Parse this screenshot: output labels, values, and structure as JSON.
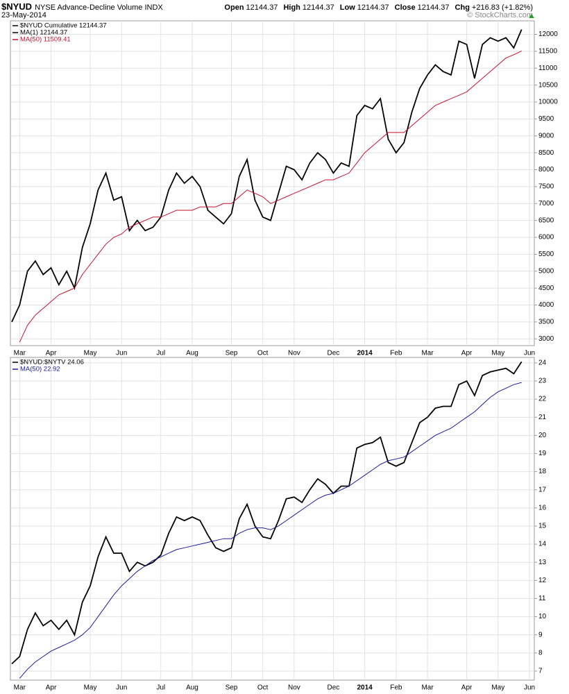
{
  "header": {
    "symbol": "$NYUD",
    "name": "NYSE Advance-Decline Volume INDX",
    "date": "23-May-2014",
    "copyright": "© StockCharts.com",
    "quote": [
      {
        "label": "Open",
        "value": "12144.37"
      },
      {
        "label": "High",
        "value": "12144.37"
      },
      {
        "label": "Low",
        "value": "12144.37"
      },
      {
        "label": "Close",
        "value": "12144.37"
      },
      {
        "label": "Chg",
        "value": "+216.83 (+1.82%)"
      }
    ]
  },
  "chart_data": [
    {
      "type": "line",
      "grid": true,
      "categories": [
        null,
        "Mar",
        null,
        null,
        null,
        "Apr",
        null,
        null,
        null,
        null,
        "May",
        null,
        null,
        null,
        "Jun",
        null,
        null,
        null,
        null,
        "Jul",
        null,
        null,
        null,
        "Aug",
        null,
        null,
        null,
        null,
        "Sep",
        null,
        null,
        null,
        "Oct",
        null,
        null,
        null,
        "Nov",
        null,
        null,
        null,
        null,
        "Dec",
        null,
        null,
        null,
        "2014",
        null,
        null,
        null,
        "Feb",
        null,
        null,
        null,
        "Mar",
        null,
        null,
        null,
        null,
        "Apr",
        null,
        null,
        null,
        "May",
        null,
        null,
        null,
        "Jun"
      ],
      "ylim": [
        2800,
        12400
      ],
      "yticks": [
        3000,
        3500,
        4000,
        4500,
        5000,
        5500,
        6000,
        6500,
        7000,
        7500,
        8000,
        8500,
        9000,
        9500,
        10000,
        10500,
        11000,
        11500,
        12000
      ],
      "series": [
        {
          "name": "$NYUD Cumulative 12144.37",
          "color": "#000000",
          "values": [
            3500,
            4000,
            5000,
            5300,
            4900,
            5100,
            4600,
            5000,
            4500,
            5700,
            6400,
            7400,
            7900,
            7100,
            7200,
            6200,
            6500,
            6200,
            6300,
            6600,
            7400,
            7900,
            7600,
            7800,
            7500,
            6800,
            6600,
            6400,
            6700,
            7800,
            8300,
            7100,
            6600,
            6500,
            7300,
            8100,
            8000,
            7700,
            8200,
            8500,
            8300,
            7900,
            8200,
            8100,
            9600,
            9900,
            9800,
            10100,
            8900,
            8500,
            8800,
            9700,
            10400,
            10800,
            11100,
            10900,
            10800,
            11800,
            11700,
            10700,
            11700,
            11900,
            11800,
            11900,
            11600,
            12144.37,
            null
          ]
        },
        {
          "name": "MA(50) 11509.41",
          "color": "#c8102e",
          "values": [
            null,
            2900,
            3400,
            3700,
            3900,
            4100,
            4300,
            4400,
            4500,
            4900,
            5200,
            5500,
            5800,
            6000,
            6100,
            6300,
            6400,
            6500,
            6600,
            6600,
            6700,
            6800,
            6800,
            6800,
            6900,
            6900,
            6900,
            7000,
            7000,
            7200,
            7400,
            7300,
            7200,
            7000,
            7100,
            7200,
            7300,
            7400,
            7500,
            7600,
            7700,
            7700,
            7800,
            7900,
            8200,
            8500,
            8700,
            8900,
            9100,
            9100,
            9100,
            9300,
            9500,
            9700,
            9900,
            10000,
            10100,
            10200,
            10300,
            10500,
            10700,
            10900,
            11100,
            11300,
            11400,
            11509.41,
            null
          ]
        }
      ],
      "legend_extra": [
        {
          "name": "MA(1) 12144.37",
          "color": "#000000"
        }
      ]
    },
    {
      "type": "line",
      "grid": true,
      "categories": [
        null,
        "Mar",
        null,
        null,
        null,
        "Apr",
        null,
        null,
        null,
        null,
        "May",
        null,
        null,
        null,
        "Jun",
        null,
        null,
        null,
        null,
        "Jul",
        null,
        null,
        null,
        "Aug",
        null,
        null,
        null,
        null,
        "Sep",
        null,
        null,
        null,
        "Oct",
        null,
        null,
        null,
        "Nov",
        null,
        null,
        null,
        null,
        "Dec",
        null,
        null,
        null,
        "2014",
        null,
        null,
        null,
        "Feb",
        null,
        null,
        null,
        "Mar",
        null,
        null,
        null,
        null,
        "Apr",
        null,
        null,
        null,
        "May",
        null,
        null,
        null,
        "Jun"
      ],
      "ylim": [
        6.5,
        24.3
      ],
      "yticks": [
        7,
        8,
        9,
        10,
        11,
        12,
        13,
        14,
        15,
        16,
        17,
        18,
        19,
        20,
        21,
        22,
        23,
        24
      ],
      "series": [
        {
          "name": "$NYUD:$NYTV 24.06",
          "color": "#000000",
          "values": [
            7.4,
            7.8,
            9.3,
            10.2,
            9.5,
            9.8,
            9.3,
            9.8,
            9.0,
            10.8,
            11.7,
            13.3,
            14.4,
            13.5,
            13.5,
            12.5,
            13.0,
            12.8,
            13.0,
            13.4,
            14.6,
            15.5,
            15.3,
            15.5,
            15.3,
            14.5,
            13.8,
            13.6,
            13.8,
            15.4,
            16.2,
            15.0,
            14.4,
            14.3,
            15.3,
            16.5,
            16.6,
            16.3,
            17.0,
            17.6,
            17.3,
            16.8,
            17.2,
            17.2,
            19.3,
            19.5,
            19.6,
            19.9,
            18.5,
            18.3,
            18.5,
            19.6,
            20.7,
            21.0,
            21.5,
            21.6,
            21.6,
            22.8,
            23.0,
            22.2,
            23.3,
            23.5,
            23.6,
            23.7,
            23.4,
            24.06,
            null
          ]
        },
        {
          "name": "MA(50) 22.92",
          "color": "#1a1a9c",
          "values": [
            null,
            6.6,
            7.1,
            7.5,
            7.8,
            8.1,
            8.3,
            8.5,
            8.7,
            9.0,
            9.4,
            10.0,
            10.6,
            11.2,
            11.7,
            12.1,
            12.5,
            12.8,
            13.1,
            13.3,
            13.5,
            13.7,
            13.8,
            13.9,
            14.0,
            14.1,
            14.2,
            14.3,
            14.3,
            14.6,
            14.8,
            14.9,
            14.9,
            14.8,
            15.0,
            15.3,
            15.6,
            15.9,
            16.2,
            16.5,
            16.7,
            16.8,
            17.0,
            17.2,
            17.5,
            17.8,
            18.1,
            18.4,
            18.6,
            18.7,
            18.8,
            19.1,
            19.4,
            19.7,
            20.0,
            20.2,
            20.4,
            20.7,
            21.0,
            21.3,
            21.7,
            22.1,
            22.4,
            22.6,
            22.8,
            22.92,
            null
          ]
        }
      ]
    }
  ]
}
